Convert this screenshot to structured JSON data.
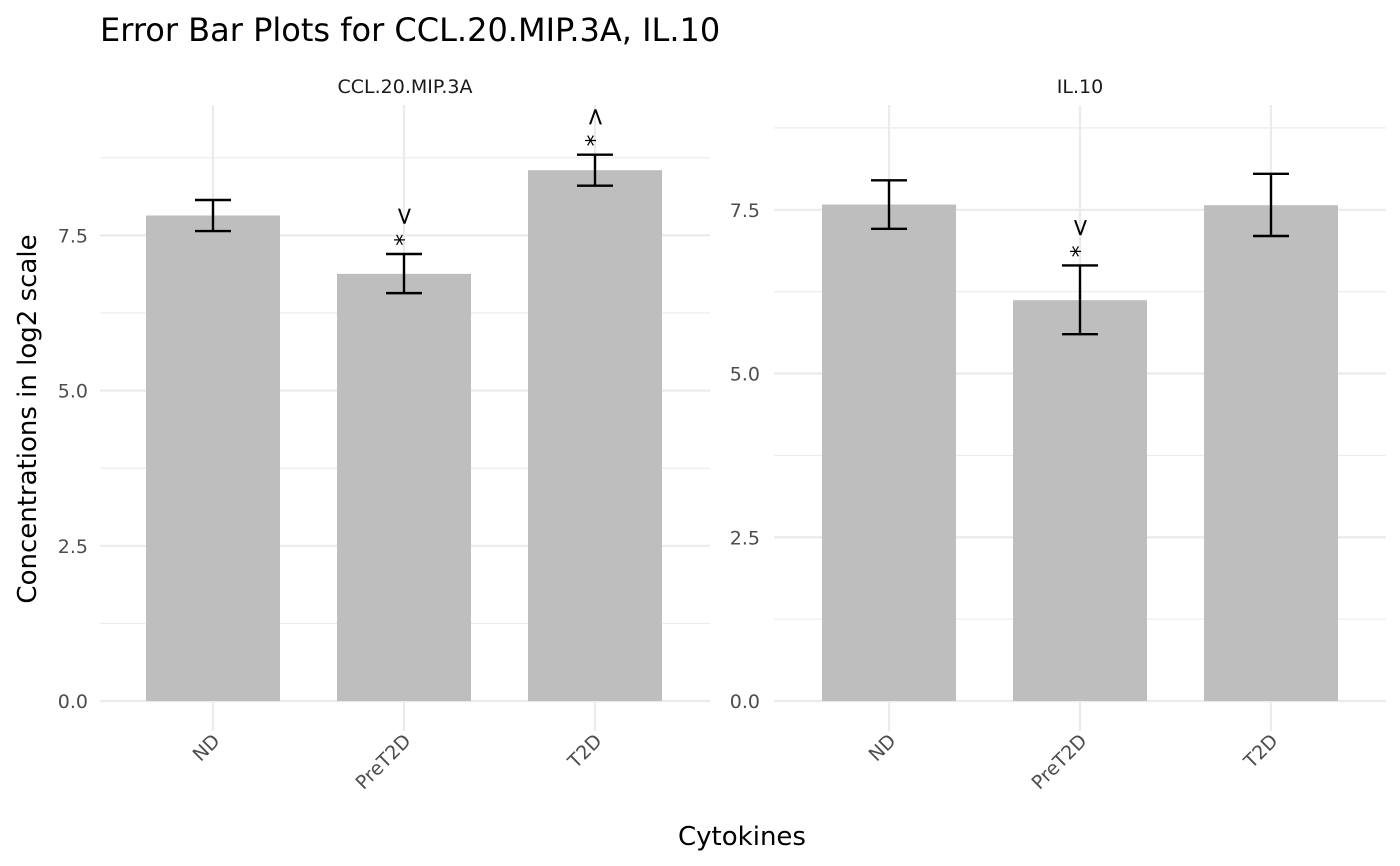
{
  "chart_data": {
    "type": "bar",
    "title": "Error Bar Plots for CCL.20.MIP.3A, IL.10",
    "xlabel": "Cytokines",
    "ylabel": "Concentrations in log2 scale",
    "categories": [
      "ND",
      "PreT2D",
      "T2D"
    ],
    "grid": true,
    "legend": "none",
    "colors": {
      "bar": "#bebebe",
      "error_bar": "#000000",
      "grid": "#ebebeb"
    },
    "panels": [
      {
        "name": "CCL.20.MIP.3A",
        "ylim": [
          0,
          9.6
        ],
        "yticks": [
          "0.0",
          "2.5",
          "5.0",
          "7.5"
        ],
        "tick_values": [
          0,
          2.5,
          5.0,
          7.5
        ],
        "values": [
          7.82,
          6.88,
          8.55
        ],
        "err_low": [
          7.57,
          6.57,
          8.3
        ],
        "err_high": [
          8.07,
          7.2,
          8.8
        ],
        "annotations": [
          "",
          "* <",
          "* >"
        ]
      },
      {
        "name": "IL.10",
        "ylim": [
          0,
          9.1
        ],
        "yticks": [
          "0.0",
          "2.5",
          "5.0",
          "7.5"
        ],
        "tick_values": [
          0,
          2.5,
          5.0,
          7.5
        ],
        "values": [
          7.58,
          6.12,
          7.57
        ],
        "err_low": [
          7.21,
          5.6,
          7.1
        ],
        "err_high": [
          7.95,
          6.65,
          8.05
        ],
        "annotations": [
          "",
          "* <",
          ""
        ]
      }
    ]
  }
}
